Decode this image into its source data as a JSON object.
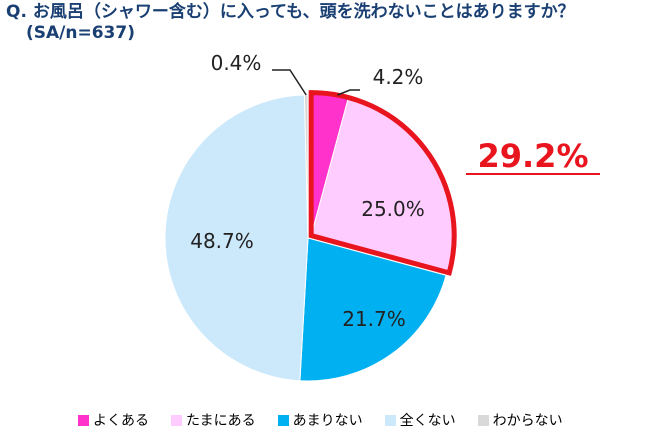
{
  "title": {
    "question": "Q. お風呂（シャワー含む）に入っても、頭を洗わないことはありますか？",
    "sample": "(SA/n=637)"
  },
  "highlight": {
    "value_label": "29.2%",
    "color": "#e8141e"
  },
  "chart_data": {
    "type": "pie",
    "title": "Q. お風呂（シャワー含む）に入っても、頭を洗わないことはありますか？",
    "subtitle": "(SA/n=637)",
    "start": "12 o'clock",
    "direction": "clockwise",
    "categories": [
      "よくある",
      "たまにある",
      "あまりない",
      "全くない",
      "わからない"
    ],
    "values": [
      4.2,
      25.0,
      21.7,
      48.7,
      0.4
    ],
    "labels": [
      "4.2%",
      "25.0%",
      "21.7%",
      "48.7%",
      "0.4%"
    ],
    "colors": [
      "#ff33cc",
      "#ffccff",
      "#00b0f0",
      "#cce9fb",
      "#d9d9d9"
    ],
    "highlighted_categories": [
      "よくある",
      "たまにある"
    ],
    "highlighted_total_label": "29.2%",
    "legend_position": "bottom"
  },
  "legend": {
    "items": [
      {
        "label": "よくある",
        "color": "#ff33cc"
      },
      {
        "label": "たまにある",
        "color": "#ffccff"
      },
      {
        "label": "あまりない",
        "color": "#00b0f0"
      },
      {
        "label": "全くない",
        "color": "#cce9fb"
      },
      {
        "label": "わからない",
        "color": "#d9d9d9"
      }
    ]
  }
}
